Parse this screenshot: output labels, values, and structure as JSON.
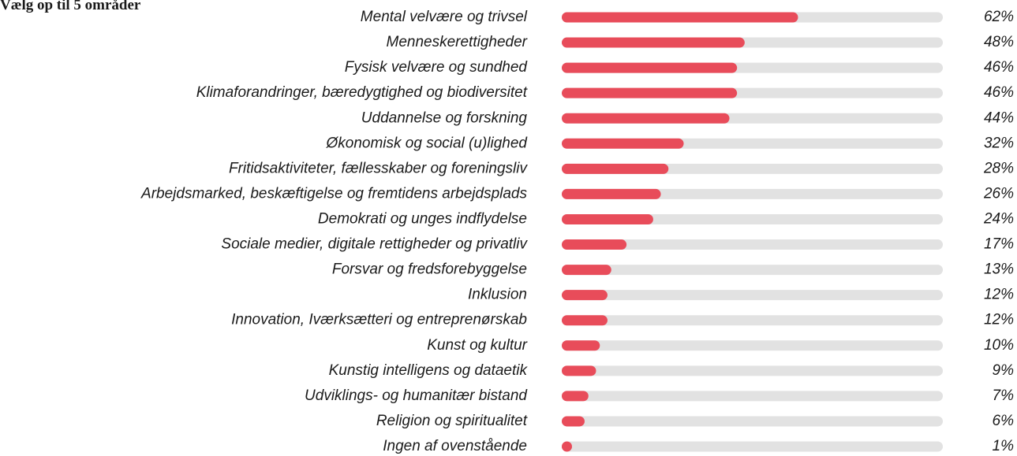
{
  "chart_data": {
    "type": "bar",
    "orientation": "horizontal",
    "title": "Vælg op til 5 områder",
    "categories": [
      "Mental velvære og trivsel",
      "Menneskerettigheder",
      "Fysisk velvære og sundhed",
      "Klimaforandringer, bæredygtighed og biodiversitet",
      "Uddannelse og forskning",
      "Økonomisk og social (u)lighed",
      "Fritidsaktiviteter, fællesskaber og foreningsliv",
      "Arbejdsmarked, beskæftigelse og fremtidens arbejdsplads",
      "Demokrati og unges indflydelse",
      "Sociale medier, digitale rettigheder og privatliv",
      "Forsvar og fredsforebyggelse",
      "Inklusion",
      "Innovation, Iværksætteri og entreprenørskab",
      "Kunst og kultur",
      "Kunstig intelligens og dataetik",
      "Udviklings- og humanitær bistand",
      "Religion og spiritualitet",
      "Ingen af ovenstående"
    ],
    "values": [
      62,
      48,
      46,
      46,
      44,
      32,
      28,
      26,
      24,
      17,
      13,
      12,
      12,
      10,
      9,
      7,
      6,
      1
    ],
    "value_labels": [
      "62%",
      "48%",
      "46%",
      "46%",
      "44%",
      "32%",
      "28%",
      "26%",
      "24%",
      "17%",
      "13%",
      "12%",
      "12%",
      "10%",
      "9%",
      "7%",
      "6%",
      "1%"
    ],
    "xlim": [
      0,
      100
    ],
    "color": "#e84c5a",
    "track_color": "#e2e2e2"
  }
}
